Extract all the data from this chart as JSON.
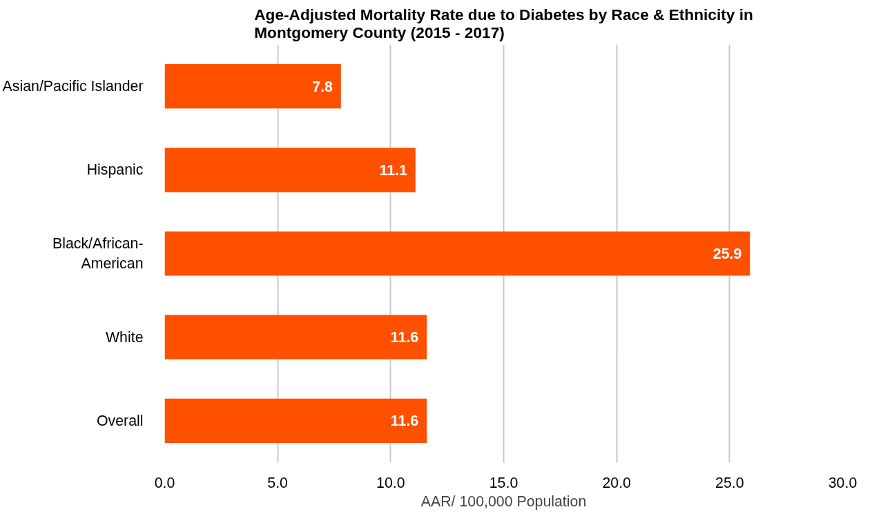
{
  "chart_data": {
    "type": "bar",
    "orientation": "horizontal",
    "title": "Age-Adjusted Mortality Rate due to Diabetes by Race & Ethnicity in Montgomery County (2015 - 2017)",
    "xlabel": "AAR/ 100,000 Population",
    "categories": [
      "Asian/Pacific Islander",
      "Hispanic",
      "Black/African-American",
      "White",
      "Overall"
    ],
    "values": [
      7.8,
      11.1,
      25.9,
      11.6,
      11.6
    ],
    "color": "#ff5000",
    "xlim": [
      0,
      30
    ],
    "xticks": [
      {
        "value": 0,
        "label": "0.0"
      },
      {
        "value": 5,
        "label": "5.0"
      },
      {
        "value": 10,
        "label": "10.0"
      },
      {
        "value": 15,
        "label": "15.0"
      },
      {
        "value": 20,
        "label": "20.0"
      },
      {
        "value": 25,
        "label": "25.0"
      },
      {
        "value": 30,
        "label": "30.0"
      }
    ],
    "grid": "x",
    "data_labels": true
  }
}
